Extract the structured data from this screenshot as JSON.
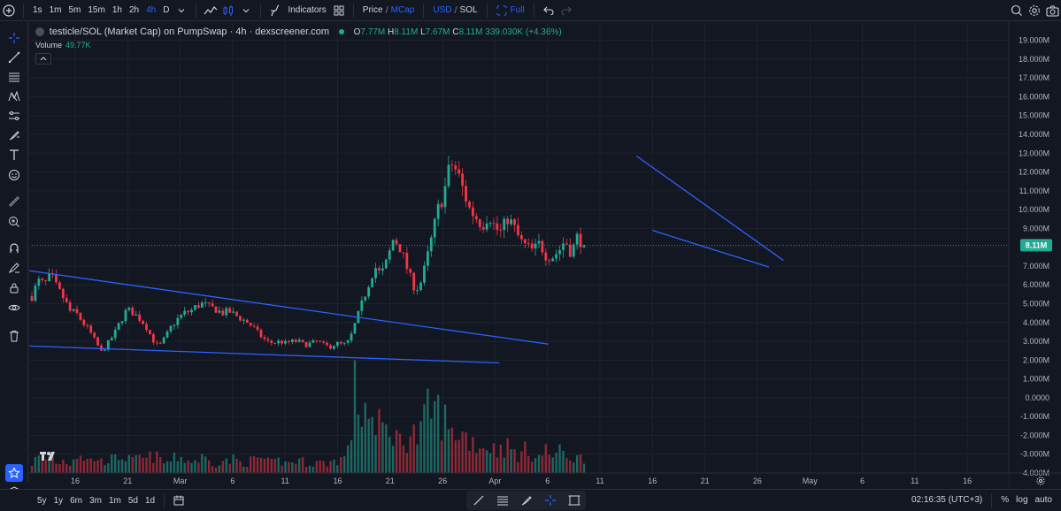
{
  "toolbar": {
    "timeframes": [
      "1s",
      "1m",
      "5m",
      "15m",
      "1h",
      "2h",
      "4h",
      "D"
    ],
    "active_timeframe": "4h",
    "indicators_label": "Indicators",
    "price_label": "Price",
    "mcap_label": "MCap",
    "usd_label": "USD",
    "sol_label": "SOL",
    "full_label": "Full",
    "slash": "/",
    "accent_color": "#2962ff"
  },
  "legend": {
    "title": "testicle/SOL (Market Cap) on PumpSwap · 4h · dexscreener.com",
    "o_key": "O",
    "o_val": "7.77M",
    "h_key": "H",
    "h_val": "8.11M",
    "l_key": "L",
    "l_val": "7.67M",
    "c_key": "C",
    "c_val": "8.11M",
    "change": "339.030K (+4.36%)",
    "volume_label": "Volume",
    "volume_val": "49.77K"
  },
  "bottom": {
    "ranges": [
      "5y",
      "1y",
      "6m",
      "3m",
      "1m",
      "5d",
      "1d"
    ],
    "clock": "02:16:35 (UTC+3)",
    "percent": "%",
    "log": "log",
    "auto": "auto"
  },
  "current_price_label": "8.11M",
  "colors": {
    "background": "#131722",
    "up": "#22ab94",
    "down": "#f23645",
    "trendline": "#2962ff",
    "grid": "#1e222d"
  },
  "chart_data": {
    "type": "candlestick",
    "title": "testicle/SOL (Market Cap) on PumpSwap · 4h · dexscreener.com",
    "ylabel": "",
    "ylim": [
      -4000000,
      19500000
    ],
    "y_ticks": [
      "19.000M",
      "18.000M",
      "17.000M",
      "16.000M",
      "15.000M",
      "14.000M",
      "13.000M",
      "12.000M",
      "11.000M",
      "10.000M",
      "9.000M",
      "8.000M",
      "7.000M",
      "6.000M",
      "5.000M",
      "4.000M",
      "3.000M",
      "2.000M",
      "1.000M",
      "0.0000",
      "-1.000M",
      "-2.000M",
      "-3.000M",
      "-4.000M"
    ],
    "y_tick_values": [
      19,
      18,
      17,
      16,
      15,
      14,
      13,
      12,
      11,
      10,
      9,
      8,
      7,
      6,
      5,
      4,
      3,
      2,
      1,
      0,
      -1,
      -2,
      -3,
      -4
    ],
    "x_ticks": [
      "16",
      "21",
      "Mar",
      "6",
      "11",
      "16",
      "21",
      "26",
      "Apr",
      "6",
      "11",
      "16",
      "21",
      "26",
      "May",
      "6",
      "11",
      "16"
    ],
    "grid": true,
    "last_close": 8.11,
    "series": [
      {
        "name": "price_path_M",
        "values": [
          5.4,
          6.2,
          6.0,
          6.5,
          5.8,
          5.3,
          4.6,
          4.5,
          4.0,
          3.6,
          3.0,
          2.4,
          2.9,
          3.4,
          4.1,
          4.7,
          4.5,
          4.2,
          3.8,
          3.1,
          2.7,
          3.2,
          3.8,
          4.2,
          4.5,
          4.6,
          4.9,
          5.0,
          4.8,
          4.7,
          4.5,
          4.6,
          4.4,
          4.2,
          4.0,
          3.7,
          3.3,
          3.0,
          2.9,
          3.0,
          2.9,
          3.0,
          3.0,
          2.8,
          2.9,
          3.0,
          2.8,
          2.7,
          2.9,
          2.8,
          3.0,
          4.0,
          5.0,
          6.0,
          7.0,
          6.5,
          7.3,
          8.5,
          8.0,
          7.0,
          6.0,
          5.8,
          7.0,
          8.5,
          10.0,
          11.0,
          12.5,
          12.0,
          11.0,
          10.0,
          9.6,
          9.2,
          9.8,
          9.0,
          8.8,
          9.6,
          9.0,
          8.3,
          8.0,
          7.8,
          8.2,
          7.6,
          7.5,
          7.8,
          8.4,
          7.7,
          8.6,
          8.11
        ]
      },
      {
        "name": "volume_M",
        "values": [
          0.6,
          1.0,
          0.8,
          1.1,
          0.6,
          0.8,
          0.6,
          1.3,
          1.1,
          0.7,
          1.0,
          0.7,
          0.9,
          0.8,
          1.2,
          0.9,
          0.7,
          1.0,
          0.8,
          1.1,
          0.9,
          0.6,
          0.8,
          1.0,
          0.9,
          0.7,
          0.8,
          1.0,
          0.7,
          0.6,
          0.8,
          0.7,
          0.9,
          0.6,
          0.7,
          0.8,
          1.0,
          0.7,
          0.6,
          0.8,
          0.6,
          0.7,
          0.8,
          0.7,
          0.6,
          0.7,
          0.6,
          0.7,
          0.8,
          0.9,
          1.5,
          5.5,
          3.6,
          4.7,
          2.2,
          3.1,
          2.4,
          2.8,
          1.9,
          2.2,
          2.6,
          2.0,
          3.5,
          4.1,
          3.8,
          3.4,
          2.2,
          2.8,
          2.4,
          2.1,
          1.9,
          1.6,
          1.8,
          1.4,
          1.7,
          1.6,
          1.3,
          1.1,
          1.5,
          1.2,
          1.0,
          1.4,
          1.1,
          1.3,
          1.2,
          1.0,
          0.9,
          1.0
        ]
      }
    ],
    "trendlines": [
      {
        "name": "upper-wedge-1",
        "x0": 0.0,
        "y0": 6.75,
        "x1": 0.53,
        "y1": 2.85
      },
      {
        "name": "lower-wedge-1",
        "x0": 0.0,
        "y0": 2.75,
        "x1": 0.48,
        "y1": 1.85
      },
      {
        "name": "upper-wedge-2",
        "x0": 0.62,
        "y0": 12.85,
        "x1": 0.77,
        "y1": 7.3
      },
      {
        "name": "lower-wedge-2",
        "x0": 0.636,
        "y0": 8.9,
        "x1": 0.755,
        "y1": 6.95
      }
    ]
  }
}
